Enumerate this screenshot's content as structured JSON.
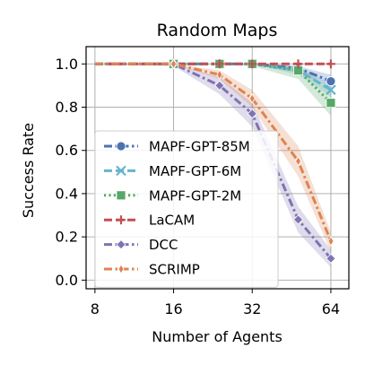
{
  "chart_data": {
    "type": "line",
    "title": "Random Maps",
    "xlabel": "Number of Agents",
    "ylabel": "Success Rate",
    "x_scale": "log2",
    "x_ticks": [
      8,
      16,
      32,
      64
    ],
    "x_tick_labels": [
      "8",
      "16",
      "32",
      "64"
    ],
    "xlim": [
      7.4,
      75
    ],
    "ylim": [
      -0.04,
      1.08
    ],
    "y_ticks": [
      0.0,
      0.2,
      0.4,
      0.6,
      0.8,
      1.0
    ],
    "y_tick_labels": [
      "0.0",
      "0.2",
      "0.4",
      "0.6",
      "0.8",
      "1.0"
    ],
    "grid": true,
    "legend_position": "lower-left",
    "series": [
      {
        "name": "MAPF-GPT-85M",
        "color": "#4c72b0",
        "marker": "circle",
        "dash": "dash-dot",
        "x": [
          8,
          16,
          24,
          32,
          48,
          64
        ],
        "y": [
          1.0,
          1.0,
          1.0,
          1.0,
          0.98,
          0.92
        ],
        "band_low": [
          1.0,
          1.0,
          1.0,
          1.0,
          0.96,
          0.89
        ],
        "band_high": [
          1.0,
          1.0,
          1.0,
          1.0,
          0.99,
          0.95
        ]
      },
      {
        "name": "MAPF-GPT-6M",
        "color": "#64b5cd",
        "marker": "x",
        "dash": "dash",
        "x": [
          8,
          16,
          24,
          32,
          48,
          64
        ],
        "y": [
          1.0,
          1.0,
          1.0,
          1.0,
          0.97,
          0.88
        ],
        "band_low": [
          1.0,
          1.0,
          1.0,
          1.0,
          0.95,
          0.85
        ],
        "band_high": [
          1.0,
          1.0,
          1.0,
          1.0,
          0.99,
          0.91
        ]
      },
      {
        "name": "MAPF-GPT-2M",
        "color": "#55a868",
        "marker": "square",
        "dash": "dot",
        "x": [
          8,
          16,
          24,
          32,
          48,
          64
        ],
        "y": [
          1.0,
          1.0,
          1.0,
          1.0,
          0.97,
          0.82
        ],
        "band_low": [
          1.0,
          1.0,
          1.0,
          0.99,
          0.93,
          0.76
        ],
        "band_high": [
          1.0,
          1.0,
          1.0,
          1.0,
          0.99,
          0.88
        ]
      },
      {
        "name": "LaCAM",
        "color": "#c44e52",
        "marker": "plus",
        "dash": "dash",
        "x": [
          8,
          16,
          24,
          32,
          48,
          64
        ],
        "y": [
          1.0,
          1.0,
          1.0,
          1.0,
          1.0,
          1.0
        ]
      },
      {
        "name": "DCC",
        "color": "#8172b3",
        "marker": "diamond",
        "dash": "dash-dot",
        "x": [
          8,
          16,
          24,
          32,
          48,
          64
        ],
        "y": [
          1.0,
          1.0,
          0.9,
          0.77,
          0.28,
          0.1
        ],
        "band_low": [
          1.0,
          0.99,
          0.86,
          0.71,
          0.22,
          0.06
        ],
        "band_high": [
          1.0,
          1.0,
          0.94,
          0.82,
          0.34,
          0.14
        ]
      },
      {
        "name": "SCRIMP",
        "color": "#dd8452",
        "marker": "thin-diamond",
        "dash": "dash-dot",
        "x": [
          8,
          16,
          24,
          32,
          48,
          64
        ],
        "y": [
          1.0,
          1.0,
          0.95,
          0.84,
          0.55,
          0.18
        ],
        "band_low": [
          1.0,
          1.0,
          0.93,
          0.8,
          0.48,
          0.13
        ],
        "band_high": [
          1.0,
          1.0,
          0.97,
          0.88,
          0.62,
          0.22
        ]
      }
    ]
  }
}
